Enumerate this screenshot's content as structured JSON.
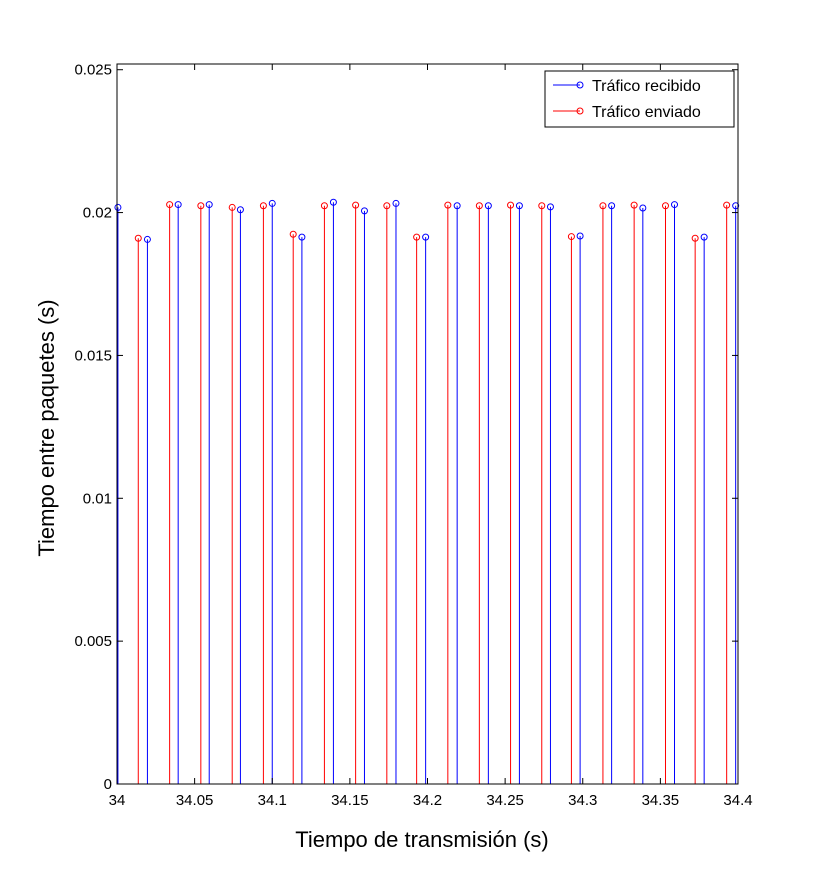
{
  "chart_data": {
    "type": "stem",
    "title": "",
    "xlabel": "Tiempo de transmisión (s)",
    "ylabel": "Tiempo entre paquetes (s)",
    "xlim": [
      34,
      34.4
    ],
    "ylim": [
      0,
      0.0252
    ],
    "x_ticks": [
      34,
      34.05,
      34.1,
      34.15,
      34.2,
      34.25,
      34.3,
      34.35,
      34.4
    ],
    "x_tick_labels": [
      "34",
      "34.05",
      "34.1",
      "34.15",
      "34.2",
      "34.25",
      "34.3",
      "34.35",
      "34.4"
    ],
    "y_ticks": [
      0,
      0.005,
      0.01,
      0.015,
      0.02,
      0.025
    ],
    "y_tick_labels": [
      "0",
      "0.005",
      "0.01",
      "0.015",
      "0.02",
      "0.025"
    ],
    "grid": false,
    "legend_position": "top-right",
    "series": [
      {
        "name": "Tráfico recibido",
        "color": "#0000ff",
        "points": [
          [
            34.0006,
            0.02018
          ],
          [
            34.0196,
            0.01906
          ],
          [
            34.0394,
            0.02028
          ],
          [
            34.0594,
            0.02028
          ],
          [
            34.0795,
            0.0201
          ],
          [
            34.1,
            0.02032
          ],
          [
            34.1191,
            0.01914
          ],
          [
            34.1394,
            0.02036
          ],
          [
            34.1594,
            0.02006
          ],
          [
            34.1797,
            0.02032
          ],
          [
            34.1988,
            0.01914
          ],
          [
            34.2191,
            0.02024
          ],
          [
            34.2392,
            0.02024
          ],
          [
            34.2592,
            0.02024
          ],
          [
            34.2792,
            0.0202
          ],
          [
            34.2983,
            0.01918
          ],
          [
            34.3186,
            0.02024
          ],
          [
            34.3387,
            0.02016
          ],
          [
            34.3591,
            0.02028
          ],
          [
            34.3782,
            0.01914
          ],
          [
            34.3985,
            0.02024
          ]
        ]
      },
      {
        "name": "Tráfico enviado",
        "color": "#ff0000",
        "points": [
          [
            34.0137,
            0.0191
          ],
          [
            34.0339,
            0.02028
          ],
          [
            34.054,
            0.02024
          ],
          [
            34.0742,
            0.02018
          ],
          [
            34.0943,
            0.02024
          ],
          [
            34.1135,
            0.01924
          ],
          [
            34.1336,
            0.02024
          ],
          [
            34.1537,
            0.02026
          ],
          [
            34.1738,
            0.02024
          ],
          [
            34.193,
            0.01914
          ],
          [
            34.2131,
            0.02026
          ],
          [
            34.2334,
            0.02024
          ],
          [
            34.2535,
            0.02026
          ],
          [
            34.2736,
            0.02024
          ],
          [
            34.2927,
            0.01916
          ],
          [
            34.313,
            0.02024
          ],
          [
            34.3331,
            0.02026
          ],
          [
            34.3533,
            0.02024
          ],
          [
            34.3724,
            0.0191
          ],
          [
            34.3927,
            0.02026
          ]
        ]
      }
    ]
  }
}
